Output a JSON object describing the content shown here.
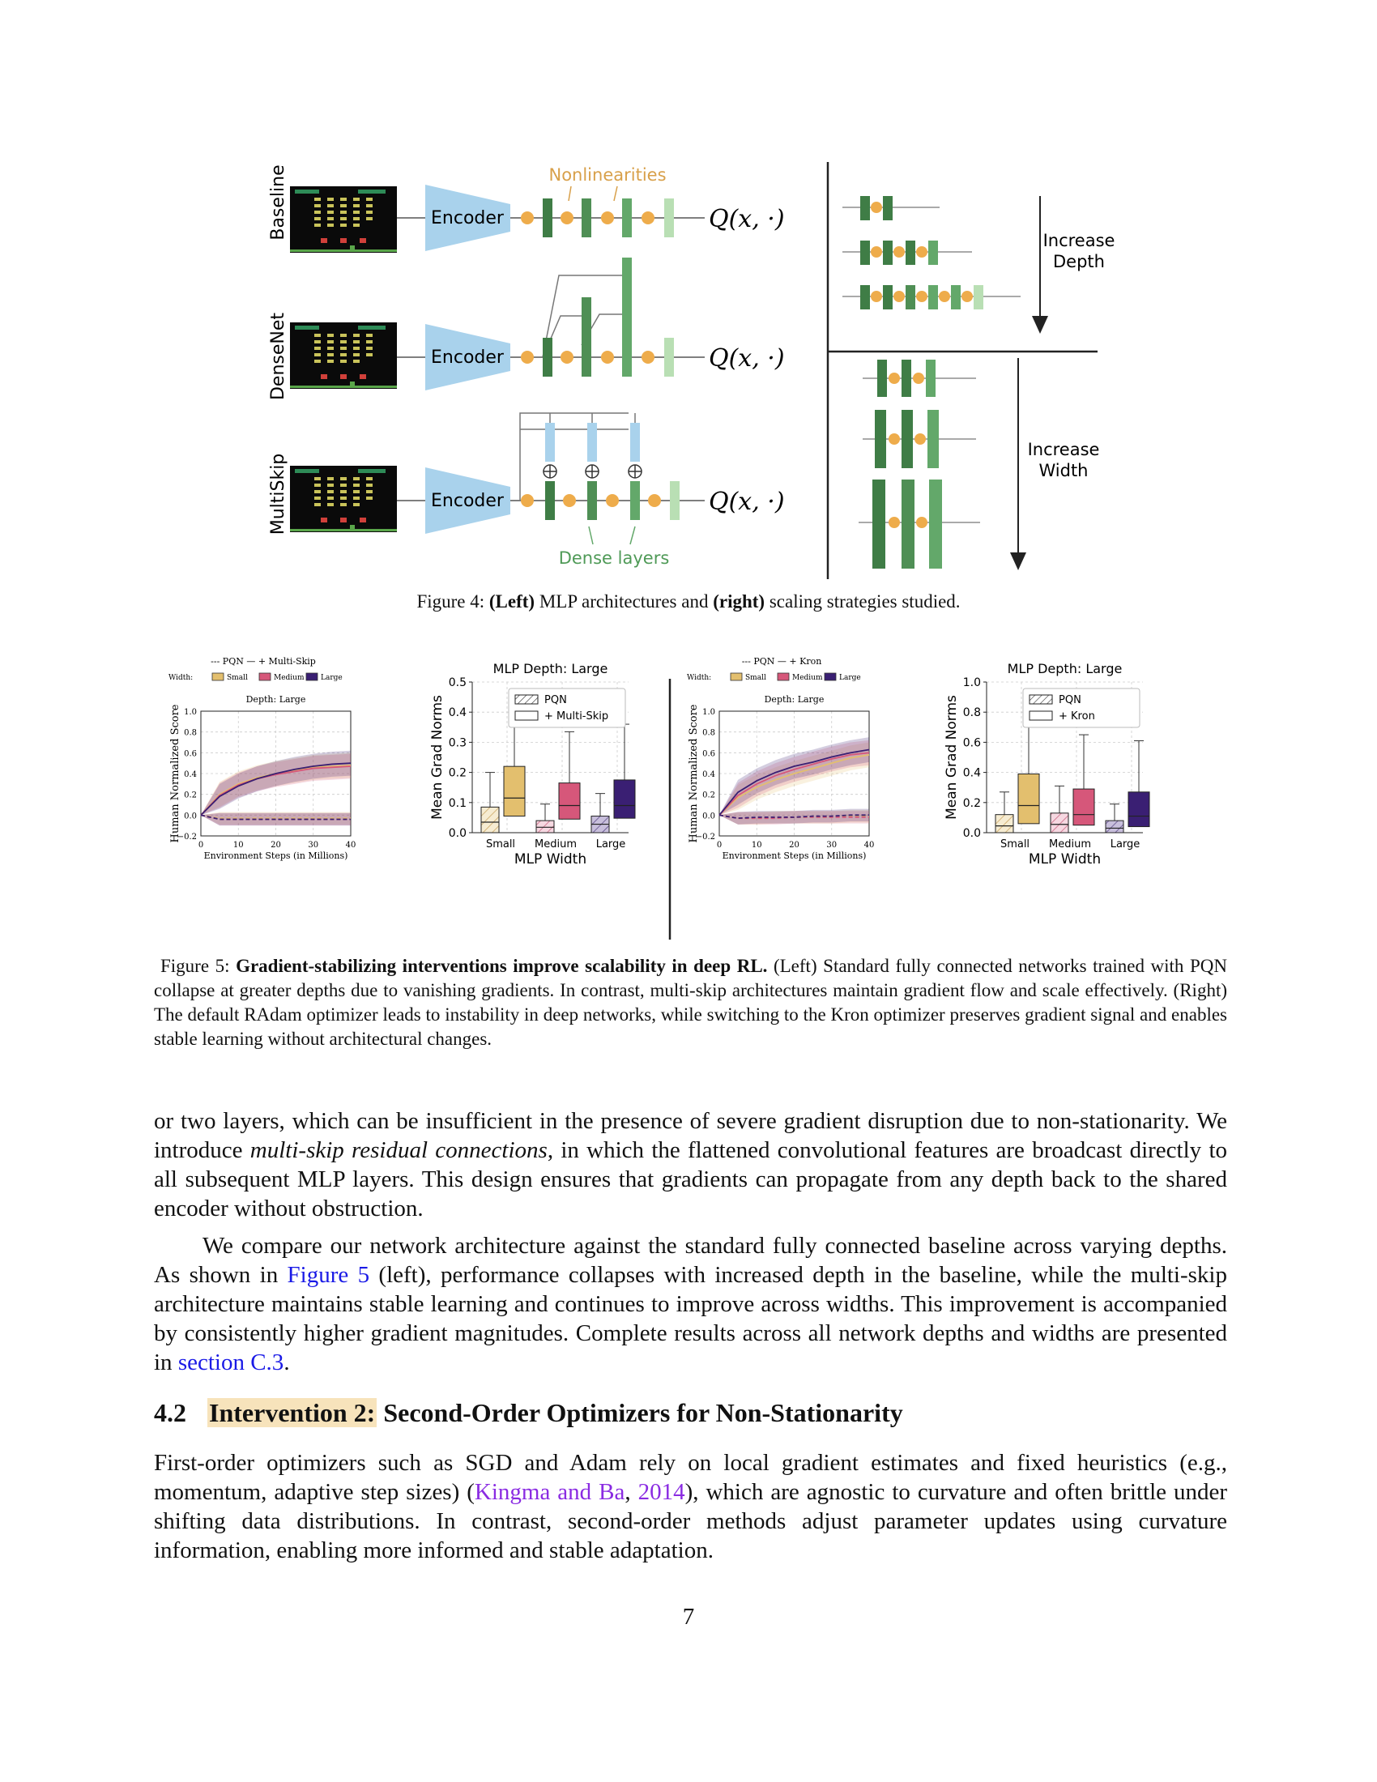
{
  "figure4": {
    "rows": [
      {
        "label": "Baseline",
        "encoder": "Encoder",
        "output": "Q(x, ·)"
      },
      {
        "label": "DenseNet",
        "encoder": "Encoder",
        "output": "Q(x, ·)"
      },
      {
        "label": "MultiSkip",
        "encoder": "Encoder",
        "output": "Q(x, ·)"
      }
    ],
    "nonlinearities_label": "Nonlinearities",
    "dense_layers_label": "Dense layers",
    "increase_depth": [
      "Increase",
      "Depth"
    ],
    "increase_width": [
      "Increase",
      "Width"
    ],
    "caption": {
      "prefix": "Figure 4: ",
      "b1": "(Left)",
      "t1": " MLP architectures and ",
      "b2": "(right)",
      "t2": " scaling strategies studied."
    }
  },
  "figure5": {
    "caption": {
      "prefix": "Figure 5: ",
      "bold": "Gradient-stabilizing interventions improve scalability in deep RL.",
      "rest": " (Left) Standard fully connected networks trained with PQN collapse at greater depths due to vanishing gradients. In contrast, multi-skip architectures maintain gradient flow and scale effectively. (Right) The default RAdam optimizer leads to instability in deep networks, while switching to the Kron optimizer preserves gradient signal and enables stable learning without architectural changes."
    }
  },
  "chart_data": [
    {
      "type": "line",
      "title": "Depth: Large",
      "xlabel": "Environment Steps (in Millions)",
      "ylabel": "Human Normalized Score",
      "xlim": [
        0,
        40
      ],
      "ylim": [
        -0.2,
        1.0
      ],
      "xticks": [
        "0",
        "10",
        "20",
        "30",
        "40"
      ],
      "yticks": [
        "−0.2",
        "0.0",
        "0.2",
        "0.4",
        "0.6",
        "0.8",
        "1.0"
      ],
      "legend_style": [
        "--- PQN",
        "— + Multi-Skip"
      ],
      "legend_width_label": "Width:",
      "legend_widths": [
        "Small",
        "Medium",
        "Large"
      ],
      "grid": true,
      "x": [
        0,
        5,
        10,
        15,
        20,
        25,
        30,
        35,
        40
      ],
      "series": [
        {
          "name": "+ Multi-Skip Small",
          "values": [
            0.0,
            0.2,
            0.3,
            0.36,
            0.4,
            0.43,
            0.46,
            0.47,
            0.48
          ]
        },
        {
          "name": "+ Multi-Skip Medium",
          "values": [
            0.0,
            0.19,
            0.29,
            0.35,
            0.39,
            0.42,
            0.45,
            0.46,
            0.47
          ]
        },
        {
          "name": "+ Multi-Skip Large",
          "values": [
            0.0,
            0.18,
            0.28,
            0.35,
            0.4,
            0.44,
            0.47,
            0.49,
            0.5
          ]
        },
        {
          "name": "PQN Small",
          "values": [
            0.0,
            -0.03,
            -0.03,
            -0.03,
            -0.03,
            -0.03,
            -0.03,
            -0.03,
            -0.03
          ]
        },
        {
          "name": "PQN Medium",
          "values": [
            0.0,
            -0.04,
            -0.04,
            -0.04,
            -0.04,
            -0.04,
            -0.04,
            -0.04,
            -0.04
          ]
        },
        {
          "name": "PQN Large",
          "values": [
            0.0,
            -0.04,
            -0.04,
            -0.04,
            -0.04,
            -0.04,
            -0.04,
            -0.04,
            -0.04
          ]
        }
      ]
    },
    {
      "type": "box",
      "title": "MLP Depth: Large",
      "xlabel": "MLP Width",
      "ylabel": "Mean Grad Norms",
      "ylim": [
        0,
        0.5
      ],
      "yticks": [
        "0.0",
        "0.1",
        "0.2",
        "0.3",
        "0.4",
        "0.5"
      ],
      "categories": [
        "Small",
        "Medium",
        "Large"
      ],
      "legend": [
        "PQN",
        "+ Multi-Skip"
      ],
      "boxes": [
        {
          "group": "Small",
          "method": "PQN",
          "min": 0.0,
          "q1": 0.0,
          "median": 0.035,
          "q3": 0.085,
          "max": 0.2
        },
        {
          "group": "Small",
          "method": "+ Multi-Skip",
          "min": 0.0,
          "q1": 0.055,
          "median": 0.115,
          "q3": 0.22,
          "max": 0.45
        },
        {
          "group": "Medium",
          "method": "PQN",
          "min": 0.0,
          "q1": 0.0,
          "median": 0.018,
          "q3": 0.04,
          "max": 0.095
        },
        {
          "group": "Medium",
          "method": "+ Multi-Skip",
          "min": 0.0,
          "q1": 0.045,
          "median": 0.09,
          "q3": 0.165,
          "max": 0.335
        },
        {
          "group": "Large",
          "method": "PQN",
          "min": 0.0,
          "q1": 0.0,
          "median": 0.028,
          "q3": 0.055,
          "max": 0.13
        },
        {
          "group": "Large",
          "method": "+ Multi-Skip",
          "min": 0.0,
          "q1": 0.048,
          "median": 0.09,
          "q3": 0.175,
          "max": 0.36
        }
      ]
    },
    {
      "type": "line",
      "title": "Depth: Large",
      "xlabel": "Environment Steps (in Millions)",
      "ylabel": "Human Normalized Score",
      "xlim": [
        0,
        40
      ],
      "ylim": [
        -0.2,
        1.0
      ],
      "xticks": [
        "0",
        "10",
        "20",
        "30",
        "40"
      ],
      "yticks": [
        "−0.2",
        "0.0",
        "0.2",
        "0.4",
        "0.6",
        "0.8",
        "1.0"
      ],
      "legend_style": [
        "--- PQN",
        "— + Kron"
      ],
      "legend_width_label": "Width:",
      "legend_widths": [
        "Small",
        "Medium",
        "Large"
      ],
      "grid": true,
      "x": [
        0,
        5,
        10,
        15,
        20,
        25,
        30,
        35,
        40
      ],
      "series": [
        {
          "name": "+ Kron Small",
          "values": [
            0.0,
            0.17,
            0.27,
            0.34,
            0.4,
            0.45,
            0.5,
            0.55,
            0.58
          ]
        },
        {
          "name": "+ Kron Medium",
          "values": [
            0.0,
            0.19,
            0.3,
            0.38,
            0.44,
            0.49,
            0.54,
            0.58,
            0.6
          ]
        },
        {
          "name": "+ Kron Large",
          "values": [
            0.0,
            0.22,
            0.33,
            0.41,
            0.47,
            0.51,
            0.56,
            0.6,
            0.63
          ]
        },
        {
          "name": "PQN Small",
          "values": [
            0.0,
            -0.03,
            -0.03,
            -0.02,
            -0.02,
            -0.02,
            -0.02,
            -0.01,
            -0.01
          ]
        },
        {
          "name": "PQN Medium",
          "values": [
            0.0,
            -0.03,
            -0.03,
            -0.03,
            -0.02,
            -0.02,
            -0.02,
            -0.02,
            -0.02
          ]
        },
        {
          "name": "PQN Large",
          "values": [
            0.0,
            -0.03,
            -0.02,
            -0.02,
            -0.02,
            -0.01,
            -0.01,
            0.0,
            0.0
          ]
        }
      ]
    },
    {
      "type": "box",
      "title": "MLP Depth: Large",
      "xlabel": "MLP Width",
      "ylabel": "Mean Grad Norms",
      "ylim": [
        0,
        1.0
      ],
      "yticks": [
        "0.0",
        "0.2",
        "0.4",
        "0.6",
        "0.8",
        "1.0"
      ],
      "categories": [
        "Small",
        "Medium",
        "Large"
      ],
      "legend": [
        "PQN",
        "+ Kron"
      ],
      "boxes": [
        {
          "group": "Small",
          "method": "PQN",
          "min": 0.0,
          "q1": 0.0,
          "median": 0.045,
          "q3": 0.12,
          "max": 0.27
        },
        {
          "group": "Small",
          "method": "+ Kron",
          "min": 0.0,
          "q1": 0.06,
          "median": 0.18,
          "q3": 0.39,
          "max": 0.88
        },
        {
          "group": "Medium",
          "method": "PQN",
          "min": 0.0,
          "q1": 0.0,
          "median": 0.055,
          "q3": 0.13,
          "max": 0.31
        },
        {
          "group": "Medium",
          "method": "+ Kron",
          "min": 0.0,
          "q1": 0.05,
          "median": 0.12,
          "q3": 0.29,
          "max": 0.65
        },
        {
          "group": "Large",
          "method": "PQN",
          "min": 0.0,
          "q1": 0.0,
          "median": 0.03,
          "q3": 0.08,
          "max": 0.19
        },
        {
          "group": "Large",
          "method": "+ Kron",
          "min": 0.0,
          "q1": 0.04,
          "median": 0.11,
          "q3": 0.27,
          "max": 0.61
        }
      ]
    }
  ],
  "colors": {
    "small": "#e3bf6e",
    "medium": "#d6577a",
    "large": "#3a1f73",
    "dark_green": "#3f7d46",
    "mid_green": "#63a86a",
    "light_green": "#b9dfb4",
    "dot": "#eeac4b",
    "encoder": "#a9d2ec",
    "skip": "#a9d2ec"
  },
  "para1": {
    "t1": "or two layers, which can be insufficient in the presence of severe gradient disruption due to non-stationarity. We introduce ",
    "em": "multi-skip residual connections",
    "t2": ", in which the flattened convolutional features are broadcast directly to all subsequent MLP layers. This design ensures that gradients can propagate from any depth back to the shared encoder without obstruction."
  },
  "para2": {
    "t1": "We compare our network architecture against the standard fully connected baseline across varying depths. As shown in ",
    "link1": "Figure 5",
    "t2": " (left), performance collapses with increased depth in the baseline, while the multi-skip architecture maintains stable learning and continues to improve across widths. This improvement is accompanied by consistently higher gradient magnitudes. Complete results across all network depths and widths are presented in ",
    "link2": "section C.3",
    "t3": "."
  },
  "section": {
    "number": "4.2",
    "highlight": "Intervention 2:",
    "title": " Second-Order Optimizers for Non-Stationarity"
  },
  "para3": {
    "t1": "First-order optimizers such as SGD and Adam rely on local gradient estimates and fixed heuristics (e.g., momentum, adaptive step sizes) (",
    "cite1": "Kingma and Ba",
    "t2": ", ",
    "cite2": "2014",
    "t3": "), which are agnostic to curvature and often brittle under shifting data distributions. In contrast, second-order methods adjust parameter updates using curvature information, enabling more informed and stable adaptation."
  },
  "page_number": "7"
}
